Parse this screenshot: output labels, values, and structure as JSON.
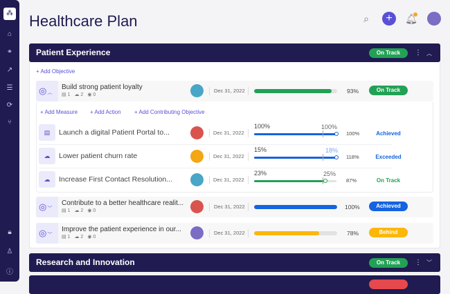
{
  "page": {
    "title": "Healthcare Plan"
  },
  "sidebar": {
    "items": [
      "logo-icon",
      "home-icon",
      "hierarchy-icon",
      "trend-icon",
      "review-icon",
      "sync-icon",
      "branch-icon",
      "lock-icon",
      "user-add-icon",
      "help-icon"
    ]
  },
  "header": {
    "icons": [
      "search-icon",
      "plus-icon",
      "bell-icon",
      "avatar"
    ]
  },
  "colors": {
    "navy": "#201b50",
    "accent": "#5a4fd6",
    "green": "#22a155",
    "blue": "#1463e0",
    "yellow": "#fbb70a",
    "red": "#e5484d"
  },
  "panels": [
    {
      "name": "Patient Experience",
      "status": "On Track",
      "expanded": true
    },
    {
      "name": "Research and Innovation",
      "status": "On Track",
      "expanded": false
    }
  ],
  "links": {
    "add_objective": "+ Add Objective",
    "add_measure": "+ Add Measure",
    "add_action": "+ Add Action",
    "add_contributing": "+ Add Contributing Objective"
  },
  "objectives": [
    {
      "name": "Build strong patient loyalty",
      "measures": "1",
      "actions": "2",
      "contrib": "0",
      "date": "Dec 31, 2022",
      "progress": 93,
      "pct": "93%",
      "status": "On Track"
    },
    {
      "name": "Contribute to a better healthcare realit...",
      "measures": "1",
      "actions": "2",
      "contrib": "0",
      "date": "Dec 31, 2022",
      "progress": 100,
      "pct": "100%",
      "status": "Achieved"
    },
    {
      "name": "Improve the patient experience in our...",
      "measures": "1",
      "actions": "2",
      "contrib": "0",
      "date": "Dec 31, 2022",
      "progress": 78,
      "pct": "78%",
      "status": "Behind"
    }
  ],
  "subitems": [
    {
      "name": "Launch a digital Patient Portal to...",
      "date": "Dec 31, 2022",
      "current": "100%",
      "target": "100%",
      "pct": "100%",
      "status": "Achieved"
    },
    {
      "name": "Lower patient churn rate",
      "date": "Dec 31, 2022",
      "current": "15%",
      "target": "18%",
      "pct": "118%",
      "status": "Exceeded"
    },
    {
      "name": "Increase First Contact Resolution...",
      "date": "Dec 31, 2022",
      "current": "23%",
      "target": "25%",
      "pct": "87%",
      "status": "On Track"
    }
  ]
}
